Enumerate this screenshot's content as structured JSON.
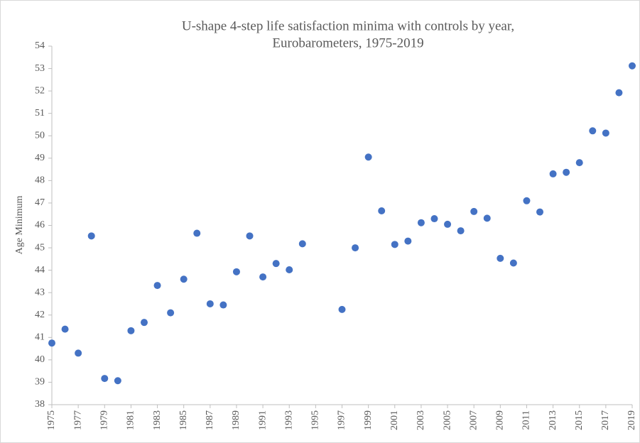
{
  "chart_data": {
    "type": "scatter",
    "title": [
      "U-shape 4-step life satisfaction minima with controls by year,",
      "Eurobarometers, 1975-2019"
    ],
    "y_label": "Age Minimum",
    "color": "#4472c4",
    "x": [
      1975,
      1976,
      1977,
      1978,
      1979,
      1980,
      1981,
      1982,
      1983,
      1984,
      1985,
      1986,
      1987,
      1988,
      1989,
      1990,
      1991,
      1992,
      1993,
      1994,
      1997,
      1998,
      1999,
      2000,
      2001,
      2002,
      2003,
      2004,
      2005,
      2006,
      2007,
      2008,
      2009,
      2010,
      2011,
      2012,
      2013,
      2014,
      2015,
      2016,
      2017,
      2018,
      2019
    ],
    "values": [
      40.75,
      41.37,
      40.3,
      45.53,
      39.17,
      39.07,
      41.3,
      41.67,
      43.32,
      42.1,
      43.6,
      45.65,
      42.5,
      42.45,
      43.93,
      45.53,
      43.7,
      44.3,
      44.02,
      45.18,
      42.25,
      45.0,
      49.05,
      46.65,
      45.15,
      45.3,
      46.12,
      46.3,
      46.05,
      45.76,
      46.62,
      46.32,
      44.53,
      44.32,
      47.1,
      46.6,
      48.3,
      48.37,
      48.8,
      50.22,
      50.12,
      51.92,
      53.12
    ],
    "xlim": [
      1975,
      2019
    ],
    "xticks": [
      1975,
      1977,
      1979,
      1981,
      1983,
      1985,
      1987,
      1989,
      1991,
      1993,
      1995,
      1997,
      1999,
      2001,
      2003,
      2005,
      2007,
      2009,
      2011,
      2013,
      2015,
      2017,
      2019
    ],
    "ylim": [
      38,
      54
    ],
    "yticks": [
      38,
      39,
      40,
      41,
      42,
      43,
      44,
      45,
      46,
      47,
      48,
      49,
      50,
      51,
      52,
      53,
      54
    ],
    "grid": false
  }
}
